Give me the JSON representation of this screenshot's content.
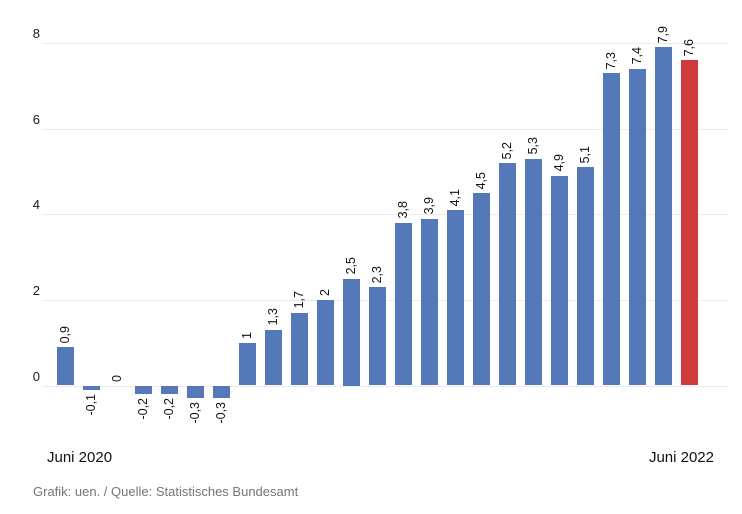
{
  "chart_data": {
    "type": "bar",
    "title": "",
    "values": [
      0.9,
      -0.1,
      0,
      -0.2,
      -0.2,
      -0.3,
      -0.3,
      1,
      1.3,
      1.7,
      2,
      2.5,
      2.3,
      3.8,
      3.9,
      4.1,
      4.5,
      5.2,
      5.3,
      4.9,
      5.1,
      7.3,
      7.4,
      7.9,
      7.6
    ],
    "value_labels": [
      "0,9",
      "-0,1",
      "0",
      "-0,2",
      "-0,2",
      "-0,3",
      "-0,3",
      "1",
      "1,3",
      "1,7",
      "2",
      "2,5",
      "2,3",
      "3,8",
      "3,9",
      "4,1",
      "4,5",
      "5,2",
      "5,3",
      "4,9",
      "5,1",
      "7,3",
      "7,4",
      "7,9",
      "7,6"
    ],
    "highlight_index": 24,
    "bar_color": "#5478b8",
    "highlight_color": "#cf3a3c",
    "yticks": [
      0,
      2,
      4,
      6,
      8
    ],
    "ylim": [
      -0.5,
      8.2
    ],
    "grid": true,
    "legend": "none",
    "x_axis": {
      "left_label": "Juni 2020",
      "right_label": "Juni 2022"
    },
    "footer": "Grafik: uen. / Quelle: Statistisches Bundesamt"
  }
}
